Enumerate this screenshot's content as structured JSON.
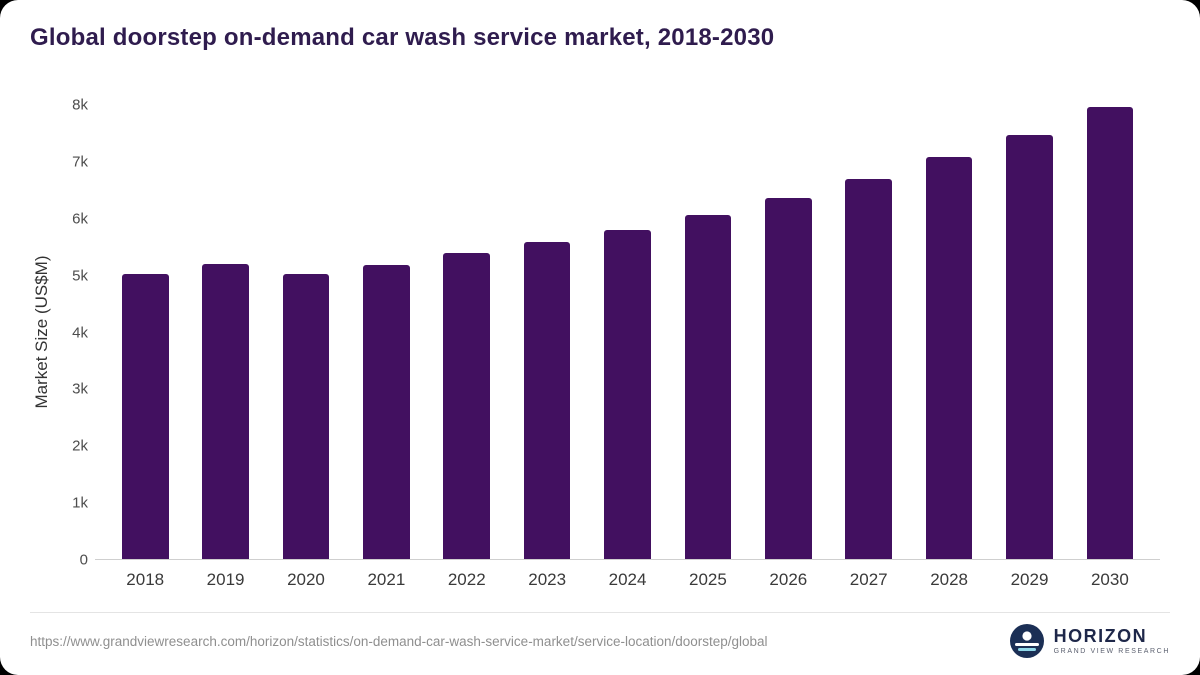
{
  "title": "Global doorstep on-demand car wash service market, 2018-2030",
  "chart_data": {
    "type": "bar",
    "categories": [
      "2018",
      "2019",
      "2020",
      "2021",
      "2022",
      "2023",
      "2024",
      "2025",
      "2026",
      "2027",
      "2028",
      "2029",
      "2030"
    ],
    "values": [
      5020,
      5190,
      5030,
      5180,
      5400,
      5590,
      5800,
      6070,
      6360,
      6690,
      7080,
      7480,
      7960
    ],
    "title": "Global doorstep on-demand car wash service market, 2018-2030",
    "xlabel": "",
    "ylabel": "Market Size (US$M)",
    "ylim": [
      0,
      8000
    ],
    "yticks": [
      "0",
      "1k",
      "2k",
      "3k",
      "4k",
      "5k",
      "6k",
      "7k",
      "8k"
    ],
    "grid": false,
    "legend": "none",
    "bar_color": "#421060"
  },
  "footer": {
    "source_url": "https://www.grandviewresearch.com/horizon/statistics/on-demand-car-wash-service-market/service-location/doorstep/global",
    "logo_title": "HORIZON",
    "logo_subtitle": "GRAND VIEW RESEARCH"
  },
  "colors": {
    "bar": "#421060",
    "title_text": "#2f1c4e",
    "axis_text": "#4d4d4d",
    "logo_navy": "#1b2f55",
    "logo_teal": "#8fd8e9"
  }
}
